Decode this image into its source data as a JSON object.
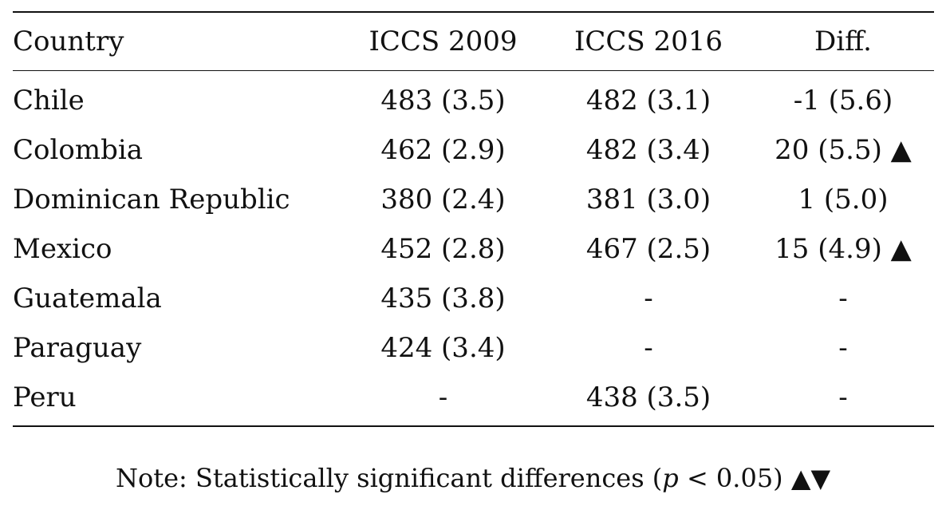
{
  "table": {
    "headers": [
      "Country",
      "ICCS 2009",
      "ICCS 2016",
      "Diff."
    ],
    "rows": [
      [
        "Chile",
        "483 (3.5)",
        "482 (3.1)",
        "-1 (5.6)"
      ],
      [
        "Colombia",
        "462 (2.9)",
        "482 (3.4)",
        "20 (5.5) ▲"
      ],
      [
        "Dominican Republic",
        "380 (2.4)",
        "381 (3.0)",
        "1 (5.0)"
      ],
      [
        "Mexico",
        "452 (2.8)",
        "467 (2.5)",
        "15 (4.9) ▲"
      ],
      [
        "Guatemala",
        "435 (3.8)",
        "-",
        "-"
      ],
      [
        "Paraguay",
        "424 (3.4)",
        "-",
        "-"
      ],
      [
        "Peru",
        "-",
        "438 (3.5)",
        "-"
      ]
    ]
  },
  "note": {
    "prefix": "Note: Statistically significant differences (",
    "p_symbol": "p",
    "condition": " < 0.05) ",
    "markers": "▲▼"
  }
}
